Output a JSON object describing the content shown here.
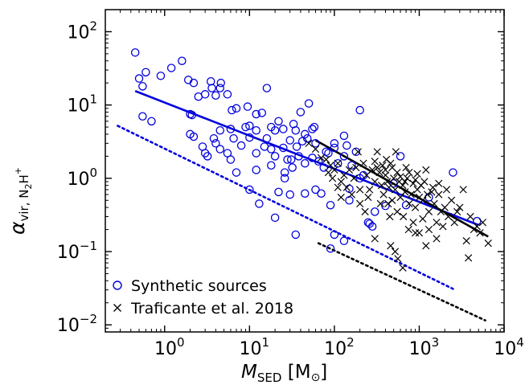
{
  "chart_data": {
    "type": "scatter",
    "x_scale": "log",
    "y_scale": "log",
    "xlim": [
      0.2,
      10000
    ],
    "ylim": [
      0.008,
      200
    ],
    "grid": false,
    "legend_position": "lower-left",
    "xlabel": {
      "main": "M",
      "sub": "SED",
      "unit_open": "[M",
      "unit_sym": "⊙",
      "unit_close": "]"
    },
    "ylabel": {
      "main": "α",
      "sub": "vir, N",
      "sub2": "2",
      "sub3": "H",
      "sup": "+"
    },
    "x_ticks": [
      {
        "value": 1,
        "base": "10",
        "exp": "0"
      },
      {
        "value": 10,
        "base": "10",
        "exp": "1"
      },
      {
        "value": 100,
        "base": "10",
        "exp": "2"
      },
      {
        "value": 1000,
        "base": "10",
        "exp": "3"
      },
      {
        "value": 10000,
        "base": "10",
        "exp": "4"
      }
    ],
    "y_ticks": [
      {
        "value": 0.01,
        "base": "10",
        "exp": "−2"
      },
      {
        "value": 0.1,
        "base": "10",
        "exp": "−1"
      },
      {
        "value": 1,
        "base": "10",
        "exp": "0"
      },
      {
        "value": 10,
        "base": "10",
        "exp": "1"
      },
      {
        "value": 100,
        "base": "10",
        "exp": "2"
      }
    ],
    "series": [
      {
        "name": "Synthetic sources",
        "marker": "circle",
        "color": "#0000dd",
        "points": [
          [
            0.45,
            52
          ],
          [
            0.5,
            23
          ],
          [
            0.55,
            18
          ],
          [
            0.6,
            28
          ],
          [
            0.55,
            7
          ],
          [
            0.7,
            6
          ],
          [
            0.9,
            25
          ],
          [
            1.2,
            32
          ],
          [
            1.6,
            40
          ],
          [
            1.9,
            22
          ],
          [
            2.2,
            20
          ],
          [
            2.5,
            13
          ],
          [
            3.0,
            14
          ],
          [
            2.0,
            7.5
          ],
          [
            2.1,
            7.3
          ],
          [
            3.5,
            21
          ],
          [
            4.0,
            13.5
          ],
          [
            3.6,
            17
          ],
          [
            4.5,
            17
          ],
          [
            4.6,
            20
          ],
          [
            5.5,
            14
          ],
          [
            6.2,
            8.5
          ],
          [
            7.0,
            9
          ],
          [
            9.5,
            9.5
          ],
          [
            12,
            7.5
          ],
          [
            14,
            7.8
          ],
          [
            16,
            17
          ],
          [
            22,
            6
          ],
          [
            25,
            4.7
          ],
          [
            33,
            5.5
          ],
          [
            40,
            8
          ],
          [
            50,
            10.5
          ],
          [
            58,
            5
          ],
          [
            35,
            4.5
          ],
          [
            45,
            4
          ],
          [
            30,
            3.3
          ],
          [
            20,
            4.5
          ],
          [
            18,
            5
          ],
          [
            16,
            3.5
          ],
          [
            12,
            4.5
          ],
          [
            9,
            5
          ],
          [
            10,
            5.2
          ],
          [
            6,
            4.7
          ],
          [
            4.5,
            4.5
          ],
          [
            4,
            3
          ],
          [
            4.5,
            2.5
          ],
          [
            5.5,
            2.2
          ],
          [
            3.8,
            3.5
          ],
          [
            3,
            2.2
          ],
          [
            2.8,
            2.7
          ],
          [
            3.2,
            2.0
          ],
          [
            2.0,
            4.0
          ],
          [
            2.2,
            3.7
          ],
          [
            6.5,
            3.5
          ],
          [
            8,
            2.8
          ],
          [
            10,
            3.6
          ],
          [
            12,
            2.2
          ],
          [
            15,
            2.7
          ],
          [
            18,
            2.5
          ],
          [
            20,
            2.0
          ],
          [
            25,
            2.6
          ],
          [
            28,
            1.8
          ],
          [
            32,
            1.4
          ],
          [
            38,
            2.0
          ],
          [
            45,
            1.6
          ],
          [
            55,
            1.9
          ],
          [
            65,
            1.7
          ],
          [
            75,
            1.4
          ],
          [
            85,
            2.2
          ],
          [
            100,
            2.6
          ],
          [
            110,
            1.6
          ],
          [
            130,
            2.0
          ],
          [
            160,
            1.5
          ],
          [
            6,
            1.8
          ],
          [
            7,
            1.2
          ],
          [
            12,
            1.3
          ],
          [
            18,
            1.5
          ],
          [
            26,
            1.2
          ],
          [
            22,
            0.65
          ],
          [
            30,
            0.6
          ],
          [
            10,
            0.7
          ],
          [
            13,
            0.45
          ],
          [
            20,
            0.29
          ],
          [
            35,
            0.17
          ],
          [
            45,
            0.62
          ],
          [
            60,
            0.7
          ],
          [
            70,
            0.62
          ],
          [
            90,
            0.43
          ],
          [
            100,
            0.17
          ],
          [
            90,
            0.11
          ],
          [
            130,
            0.14
          ],
          [
            150,
            0.72
          ],
          [
            200,
            1.0
          ],
          [
            250,
            0.25
          ],
          [
            300,
            0.35
          ],
          [
            400,
            0.42
          ],
          [
            500,
            0.85
          ],
          [
            600,
            2.0
          ],
          [
            700,
            0.43
          ],
          [
            1300,
            0.55
          ],
          [
            2500,
            1.2
          ],
          [
            4800,
            0.26
          ],
          [
            200,
            8.5
          ],
          [
            130,
            3.8
          ],
          [
            100,
            3.0
          ],
          [
            60,
            3.0
          ],
          [
            80,
            2.3
          ],
          [
            140,
            2.8
          ],
          [
            180,
            2.3
          ],
          [
            220,
            1.1
          ],
          [
            260,
            0.24
          ],
          [
            280,
            0.22
          ],
          [
            150,
            0.5
          ],
          [
            55,
            4.7
          ],
          [
            48,
            3.5
          ],
          [
            42,
            3.2
          ],
          [
            36,
            2.7
          ],
          [
            31,
            1.8
          ],
          [
            26,
            1.0
          ]
        ]
      },
      {
        "name": "Traficante et al. 2018",
        "marker": "x",
        "color": "#000000",
        "points": [
          [
            50,
            3.0
          ],
          [
            60,
            2.5
          ],
          [
            70,
            1.9
          ],
          [
            80,
            1.8
          ],
          [
            90,
            1.5
          ],
          [
            100,
            1.3
          ],
          [
            110,
            1.6
          ],
          [
            120,
            0.9
          ],
          [
            130,
            1.1
          ],
          [
            140,
            0.75
          ],
          [
            150,
            1.3
          ],
          [
            160,
            0.6
          ],
          [
            170,
            1.0
          ],
          [
            180,
            1.4
          ],
          [
            190,
            2.3
          ],
          [
            200,
            0.7
          ],
          [
            220,
            1.6
          ],
          [
            240,
            1.1
          ],
          [
            250,
            0.55
          ],
          [
            260,
            0.7
          ],
          [
            280,
            1.3
          ],
          [
            300,
            0.9
          ],
          [
            320,
            1.4
          ],
          [
            340,
            1.2
          ],
          [
            360,
            0.8
          ],
          [
            380,
            0.6
          ],
          [
            400,
            1.1
          ],
          [
            420,
            0.9
          ],
          [
            440,
            0.75
          ],
          [
            460,
            1.6
          ],
          [
            480,
            0.5
          ],
          [
            500,
            1.0
          ],
          [
            520,
            0.7
          ],
          [
            550,
            1.2
          ],
          [
            580,
            0.9
          ],
          [
            600,
            0.55
          ],
          [
            640,
            0.8
          ],
          [
            680,
            0.65
          ],
          [
            720,
            1.0
          ],
          [
            760,
            0.45
          ],
          [
            800,
            0.6
          ],
          [
            850,
            0.85
          ],
          [
            900,
            0.4
          ],
          [
            950,
            0.7
          ],
          [
            1000,
            0.55
          ],
          [
            1100,
            0.5
          ],
          [
            1200,
            1.3
          ],
          [
            1300,
            0.35
          ],
          [
            1400,
            0.65
          ],
          [
            1500,
            0.45
          ],
          [
            1600,
            0.25
          ],
          [
            1700,
            0.6
          ],
          [
            1800,
            0.35
          ],
          [
            2000,
            0.4
          ],
          [
            2200,
            0.3
          ],
          [
            2400,
            0.5
          ],
          [
            2600,
            0.25
          ],
          [
            2800,
            0.35
          ],
          [
            3000,
            0.4
          ],
          [
            3300,
            0.7
          ],
          [
            3600,
            0.14
          ],
          [
            3800,
            0.082
          ],
          [
            4000,
            0.3
          ],
          [
            4400,
            0.2
          ],
          [
            4800,
            0.22
          ],
          [
            5200,
            0.18
          ],
          [
            5600,
            0.25
          ],
          [
            6500,
            0.13
          ],
          [
            350,
            0.45
          ],
          [
            450,
            0.3
          ],
          [
            550,
            0.35
          ],
          [
            650,
            0.3
          ],
          [
            750,
            0.2
          ],
          [
            850,
            0.25
          ],
          [
            900,
            0.18
          ],
          [
            1100,
            0.28
          ],
          [
            1300,
            0.2
          ],
          [
            1600,
            0.15
          ],
          [
            1900,
            0.22
          ],
          [
            200,
            0.45
          ],
          [
            230,
            0.35
          ],
          [
            120,
            0.55
          ],
          [
            110,
            0.75
          ],
          [
            95,
            1.0
          ],
          [
            85,
            1.2
          ],
          [
            300,
            1.7
          ],
          [
            320,
            2.3
          ],
          [
            370,
            1.5
          ],
          [
            410,
            1.8
          ],
          [
            480,
            1.4
          ],
          [
            530,
            2.3
          ],
          [
            700,
            1.4
          ],
          [
            760,
            1.2
          ],
          [
            520,
            0.1
          ],
          [
            460,
            0.12
          ],
          [
            560,
            0.08
          ],
          [
            640,
            0.06
          ],
          [
            1000,
            0.18
          ],
          [
            1200,
            0.12
          ],
          [
            300,
            0.15
          ],
          [
            400,
            1.3
          ],
          [
            430,
            0.45
          ],
          [
            600,
            1.05
          ],
          [
            680,
            0.9
          ],
          [
            900,
            0.95
          ],
          [
            950,
            1.15
          ],
          [
            1050,
            0.8
          ],
          [
            1150,
            0.9
          ],
          [
            1250,
            0.6
          ],
          [
            1450,
            0.75
          ],
          [
            1700,
            0.85
          ],
          [
            2100,
            0.7
          ]
        ]
      }
    ],
    "lines": [
      {
        "series": "Synthetic sources",
        "style": "solid",
        "color": "#0000dd",
        "x": [
          0.45,
          5000
        ],
        "y": [
          15.5,
          0.23
        ]
      },
      {
        "series": "Synthetic sources",
        "style": "dotted",
        "color": "#0000dd",
        "x": [
          0.28,
          2500
        ],
        "y": [
          5.2,
          0.031
        ]
      },
      {
        "series": "Traficante et al. 2018",
        "style": "solid",
        "color": "#000000",
        "x": [
          60,
          6500
        ],
        "y": [
          3.3,
          0.16
        ]
      },
      {
        "series": "Traficante et al. 2018",
        "style": "dotted",
        "color": "#000000",
        "x": [
          65,
          6000
        ],
        "y": [
          0.13,
          0.0115
        ]
      }
    ],
    "legend": [
      {
        "label": "Synthetic sources",
        "marker": "circle",
        "color": "#0000dd"
      },
      {
        "label": "Traficante et al. 2018",
        "marker": "x",
        "color": "#000000"
      }
    ]
  }
}
